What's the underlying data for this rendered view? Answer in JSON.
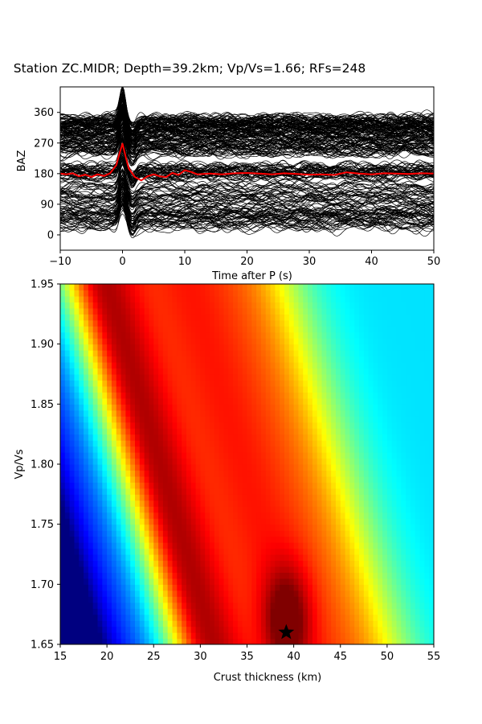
{
  "chart_data": [
    {
      "type": "line",
      "title": "Station ZC.MIDR; Depth=39.2km; Vp/Vs=1.66; RFs=248",
      "xlabel": "Time after P (s)",
      "ylabel": "BAZ",
      "xlim": [
        -10,
        50
      ],
      "ylim": [
        -45,
        435
      ],
      "xticks": [
        -10,
        0,
        10,
        20,
        30,
        40,
        50
      ],
      "yticks": [
        0,
        90,
        180,
        270,
        360
      ],
      "traces": {
        "count": 248,
        "color": "#000000",
        "description_baz_offsets": "each receiver function trace plotted at its back-azimuth offset",
        "peak_time": 0
      },
      "series": [
        {
          "color": "#ff0000",
          "x": [
            -10,
            -9,
            -8,
            -7,
            -6,
            -5,
            -4,
            -3,
            -2,
            -1,
            -0.5,
            0,
            0.5,
            1,
            2,
            3,
            4,
            5,
            6,
            7,
            8,
            9,
            10,
            11,
            12,
            14,
            16,
            18,
            20,
            22,
            24,
            26,
            28,
            30,
            32,
            34,
            36,
            38,
            40,
            42,
            44,
            46,
            48,
            50
          ],
          "y": [
            180,
            178,
            181,
            172,
            177,
            170,
            178,
            173,
            181,
            205,
            238,
            268,
            230,
            195,
            170,
            160,
            172,
            178,
            172,
            170,
            182,
            176,
            190,
            185,
            178,
            180,
            178,
            181,
            182,
            180,
            178,
            181,
            179,
            177,
            178,
            176,
            184,
            180,
            178,
            181,
            180,
            179,
            181,
            180
          ]
        }
      ]
    },
    {
      "type": "heatmap",
      "xlabel": "Crust thickness (km)",
      "ylabel": "Vp/Vs",
      "xlim": [
        15,
        55
      ],
      "ylim": [
        1.65,
        1.95
      ],
      "xticks": [
        15,
        20,
        25,
        30,
        35,
        40,
        45,
        50,
        55
      ],
      "yticks": [
        1.65,
        1.7,
        1.75,
        1.8,
        1.85,
        1.9,
        1.95
      ],
      "colormap": "jet",
      "best_fit": {
        "thickness": 39.2,
        "vpvs": 1.66,
        "marker": "star"
      }
    }
  ]
}
